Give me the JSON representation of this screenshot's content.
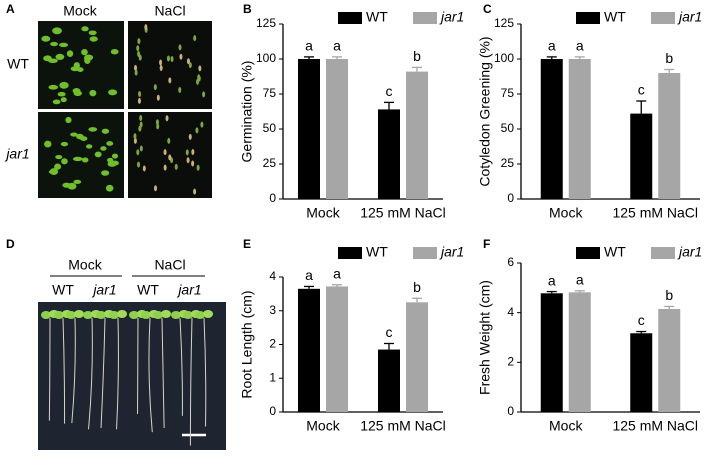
{
  "panel_a": {
    "letter": "A",
    "columns": [
      "Mock",
      "NaCl"
    ],
    "rows": [
      "WT",
      "jar1"
    ]
  },
  "panel_d": {
    "letter": "D",
    "groups": [
      "Mock",
      "NaCl"
    ],
    "genotypes": [
      "WT",
      "jar1",
      "WT",
      "jar1"
    ]
  },
  "chart_data": [
    {
      "letter": "B",
      "type": "bar",
      "ylabel": "Germination (%)",
      "categories": [
        "Mock",
        "125 mM NaCl"
      ],
      "series": [
        {
          "name": "WT",
          "color": "#000000",
          "values": [
            100,
            64
          ],
          "errors": [
            1.5,
            5
          ],
          "significance": [
            "a",
            "c"
          ]
        },
        {
          "name": "jar1",
          "color": "#a6a6a6",
          "values": [
            100,
            91
          ],
          "errors": [
            1.5,
            3
          ],
          "significance": [
            "a",
            "b"
          ]
        }
      ],
      "ylim": [
        0,
        125
      ],
      "yticks": [
        0,
        25,
        50,
        75,
        100,
        125
      ]
    },
    {
      "letter": "C",
      "type": "bar",
      "ylabel": "Cotyledon Greening (%)",
      "categories": [
        "Mock",
        "125 mM NaCl"
      ],
      "series": [
        {
          "name": "WT",
          "color": "#000000",
          "values": [
            100,
            61
          ],
          "errors": [
            1.5,
            9
          ],
          "significance": [
            "a",
            "c"
          ]
        },
        {
          "name": "jar1",
          "color": "#a6a6a6",
          "values": [
            100,
            90
          ],
          "errors": [
            1.5,
            2.5
          ],
          "significance": [
            "a",
            "b"
          ]
        }
      ],
      "ylim": [
        0,
        125
      ],
      "yticks": [
        0,
        25,
        50,
        75,
        100,
        125
      ]
    },
    {
      "letter": "E",
      "type": "bar",
      "ylabel": "Root Length (cm)",
      "categories": [
        "Mock",
        "125 mM NaCl"
      ],
      "series": [
        {
          "name": "WT",
          "color": "#000000",
          "values": [
            3.65,
            1.85
          ],
          "errors": [
            0.07,
            0.18
          ],
          "significance": [
            "a",
            "c"
          ]
        },
        {
          "name": "jar1",
          "color": "#a6a6a6",
          "values": [
            3.72,
            3.25
          ],
          "errors": [
            0.05,
            0.12
          ],
          "significance": [
            "a",
            "b"
          ]
        }
      ],
      "ylim": [
        0,
        4
      ],
      "yticks": [
        0,
        1,
        2,
        3,
        4
      ]
    },
    {
      "letter": "F",
      "type": "bar",
      "ylabel": "Fresh Weight (cm)",
      "categories": [
        "Mock",
        "125 mM NaCl"
      ],
      "series": [
        {
          "name": "WT",
          "color": "#000000",
          "values": [
            4.78,
            3.17
          ],
          "errors": [
            0.07,
            0.07
          ],
          "significance": [
            "a",
            "c"
          ]
        },
        {
          "name": "jar1",
          "color": "#a6a6a6",
          "values": [
            4.82,
            4.15
          ],
          "errors": [
            0.06,
            0.1
          ],
          "significance": [
            "a",
            "b"
          ]
        }
      ],
      "ylim": [
        0,
        6
      ],
      "yticks": [
        0,
        2,
        4,
        6
      ]
    }
  ]
}
